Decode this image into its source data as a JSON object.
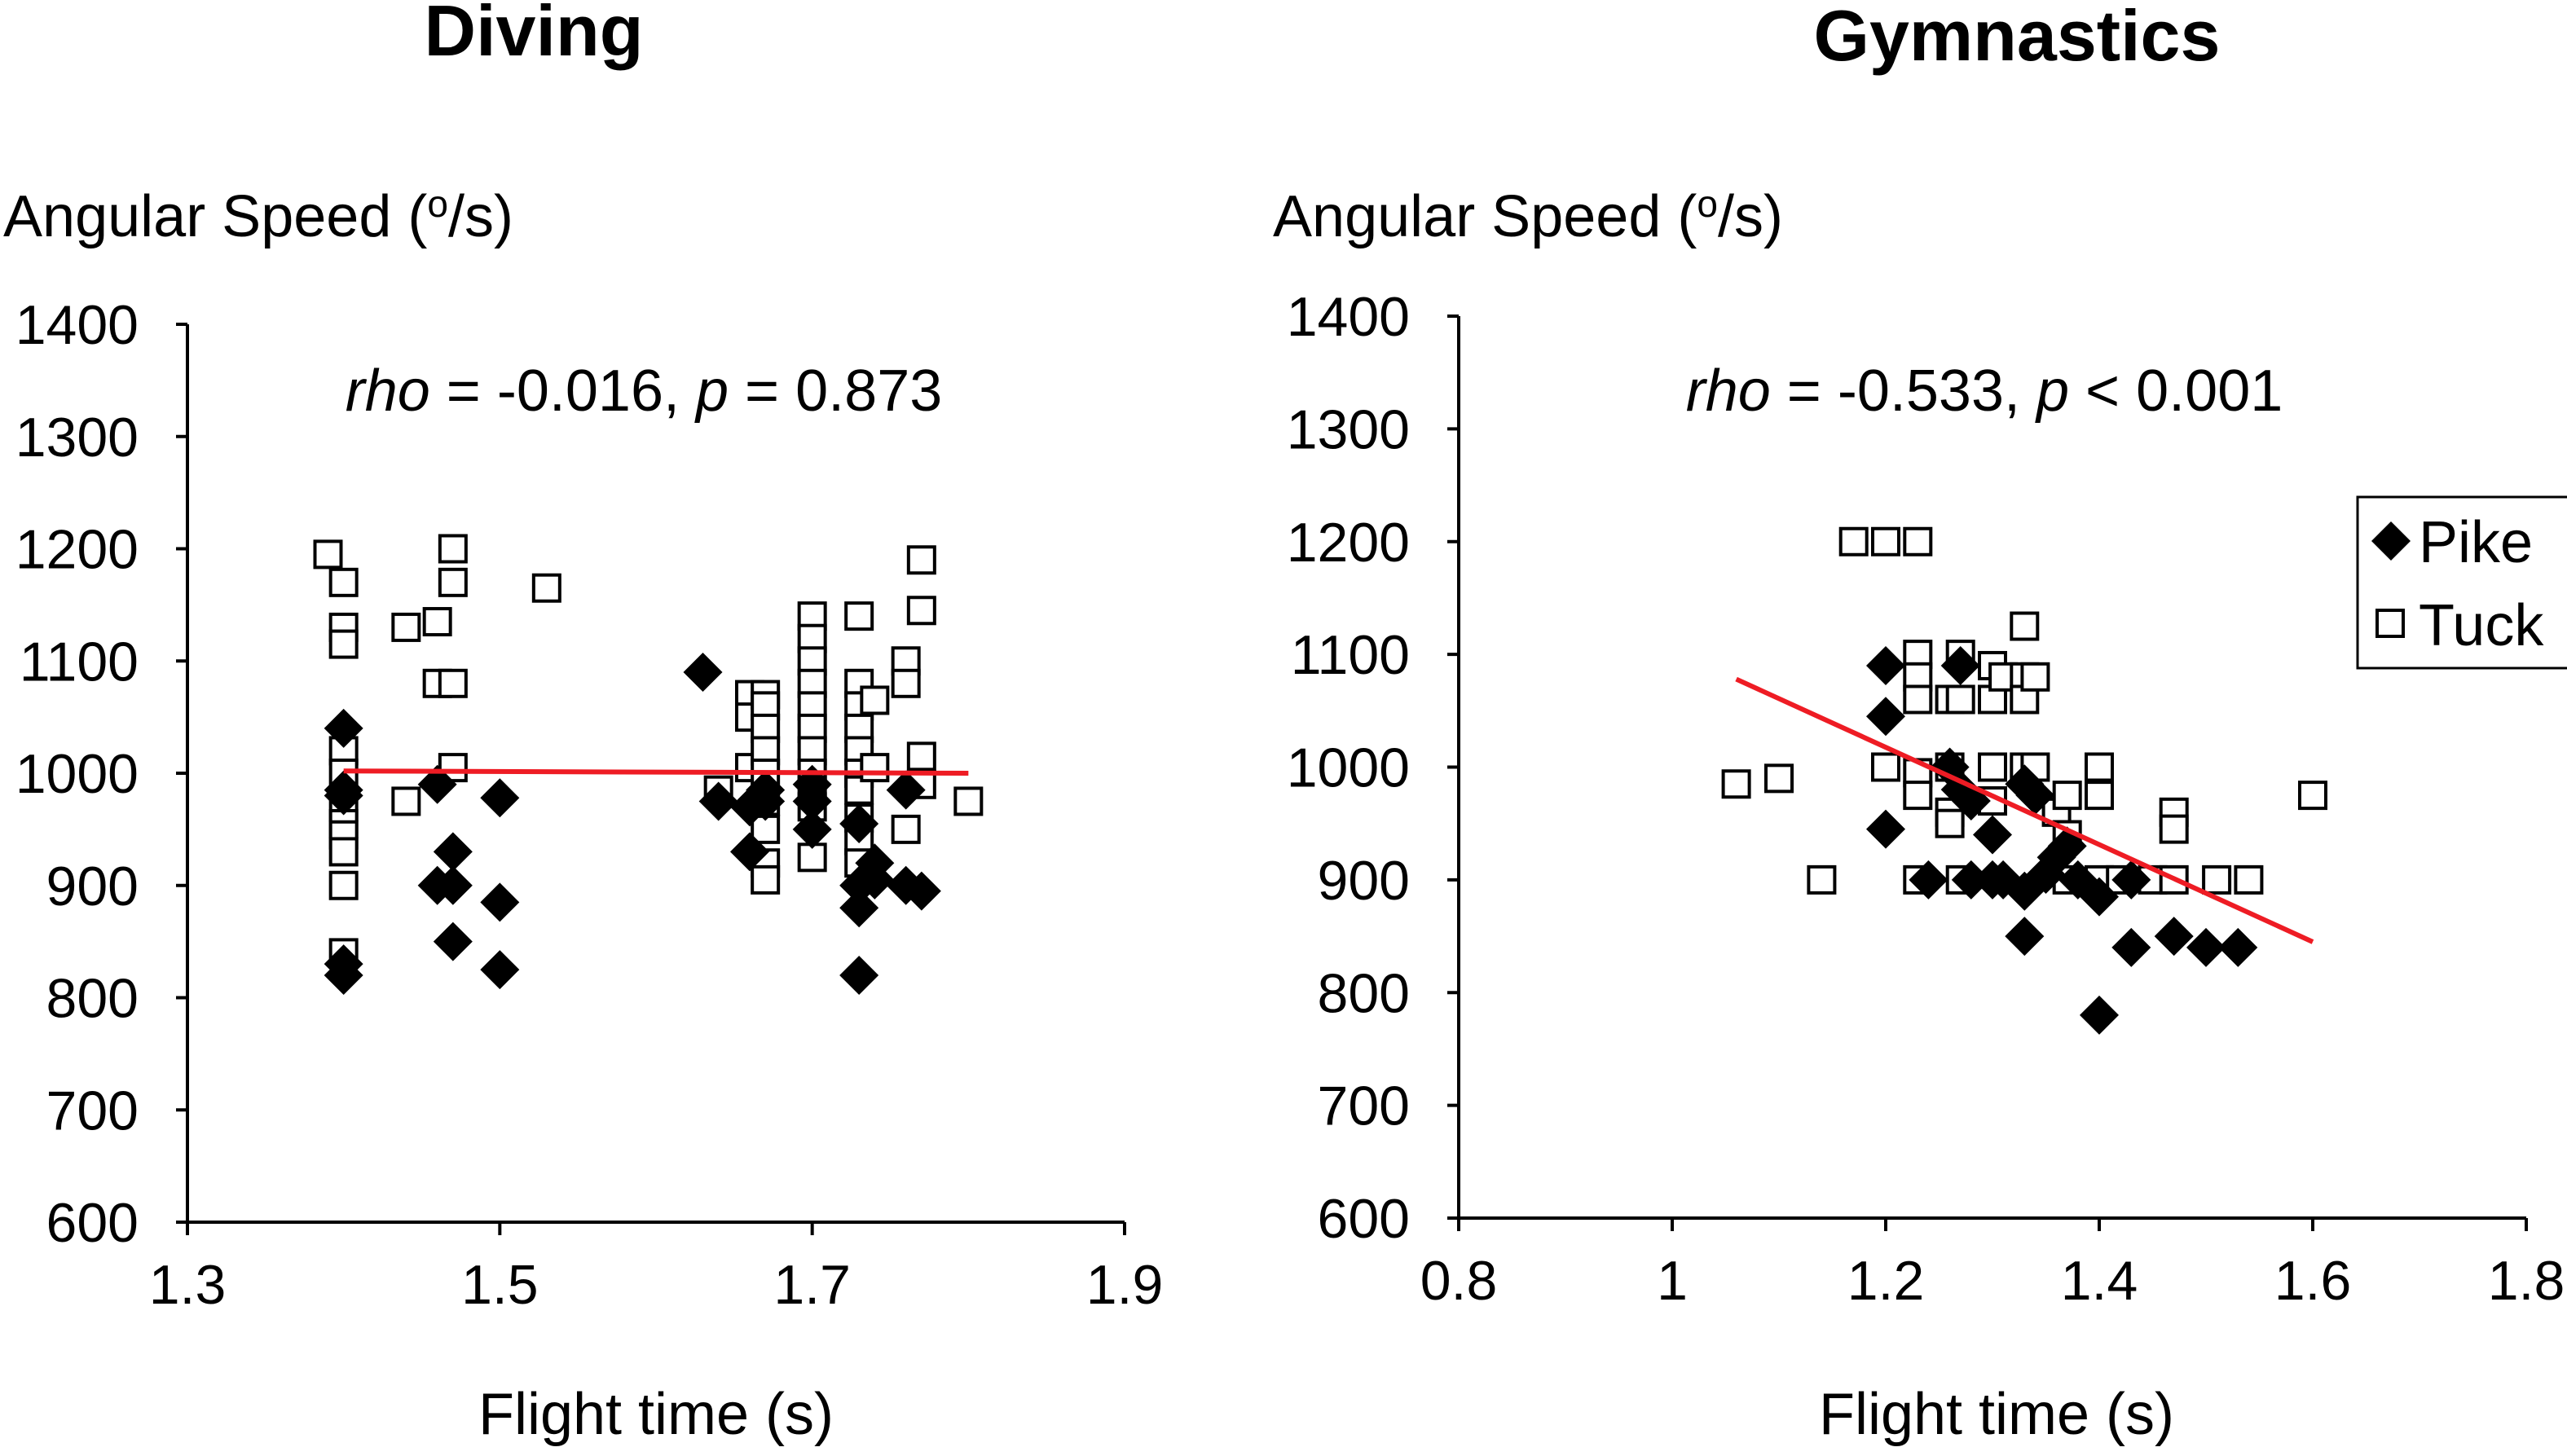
{
  "chart_data": [
    {
      "type": "scatter",
      "title": "Diving",
      "ylabel_main": "Angular Speed (",
      "ylabel_sup": "o",
      "ylabel_end": "/s)",
      "xlabel": "Flight time (s)",
      "xlim": [
        1.3,
        1.9
      ],
      "ylim": [
        600,
        1400
      ],
      "xticks": [
        1.3,
        1.5,
        1.7,
        1.9
      ],
      "xtick_labels": [
        "1.3",
        "1.5",
        "1.7",
        "1.9"
      ],
      "yticks": [
        600,
        700,
        800,
        900,
        1000,
        1100,
        1200,
        1300,
        1400
      ],
      "ytick_labels": [
        "600",
        "700",
        "800",
        "900",
        "1000",
        "1100",
        "1200",
        "1300",
        "1400"
      ],
      "stat_rho_label": "rho",
      "stat_rho_value": " = -0.016, ",
      "stat_p_label": "p",
      "stat_p_value": " = 0.873",
      "trendline": {
        "x": [
          1.4,
          1.8
        ],
        "y": [
          1002,
          1000
        ],
        "color": "#ee1c24"
      },
      "series": [
        {
          "name": "Pike",
          "marker": "diamond",
          "points": [
            [
              1.4,
              1040
            ],
            [
              1.4,
              985
            ],
            [
              1.4,
              980
            ],
            [
              1.4,
              830
            ],
            [
              1.4,
              820
            ],
            [
              1.46,
              990
            ],
            [
              1.46,
              900
            ],
            [
              1.47,
              930
            ],
            [
              1.47,
              900
            ],
            [
              1.47,
              850
            ],
            [
              1.5,
              978
            ],
            [
              1.5,
              885
            ],
            [
              1.5,
              825
            ],
            [
              1.63,
              1090
            ],
            [
              1.64,
              975
            ],
            [
              1.66,
              970
            ],
            [
              1.66,
              930
            ],
            [
              1.67,
              985
            ],
            [
              1.67,
              975
            ],
            [
              1.7,
              990
            ],
            [
              1.7,
              975
            ],
            [
              1.7,
              950
            ],
            [
              1.73,
              955
            ],
            [
              1.73,
              900
            ],
            [
              1.73,
              880
            ],
            [
              1.73,
              820
            ],
            [
              1.74,
              920
            ],
            [
              1.74,
              905
            ],
            [
              1.76,
              985
            ],
            [
              1.76,
              900
            ],
            [
              1.77,
              895
            ]
          ]
        },
        {
          "name": "Tuck",
          "marker": "square",
          "points": [
            [
              1.39,
              1195
            ],
            [
              1.4,
              1170
            ],
            [
              1.4,
              1130
            ],
            [
              1.4,
              1115
            ],
            [
              1.4,
              1020
            ],
            [
              1.4,
              1000
            ],
            [
              1.4,
              970
            ],
            [
              1.4,
              955
            ],
            [
              1.4,
              945
            ],
            [
              1.4,
              930
            ],
            [
              1.4,
              900
            ],
            [
              1.4,
              840
            ],
            [
              1.44,
              1130
            ],
            [
              1.44,
              975
            ],
            [
              1.46,
              1135
            ],
            [
              1.46,
              1080
            ],
            [
              1.47,
              1200
            ],
            [
              1.47,
              1170
            ],
            [
              1.47,
              1080
            ],
            [
              1.47,
              1005
            ],
            [
              1.53,
              1165
            ],
            [
              1.64,
              985
            ],
            [
              1.66,
              1070
            ],
            [
              1.66,
              1050
            ],
            [
              1.66,
              1005
            ],
            [
              1.67,
              1070
            ],
            [
              1.67,
              1060
            ],
            [
              1.67,
              1040
            ],
            [
              1.67,
              1020
            ],
            [
              1.67,
              1000
            ],
            [
              1.67,
              975
            ],
            [
              1.67,
              950
            ],
            [
              1.67,
              920
            ],
            [
              1.67,
              905
            ],
            [
              1.7,
              1140
            ],
            [
              1.7,
              1120
            ],
            [
              1.7,
              1100
            ],
            [
              1.7,
              1080
            ],
            [
              1.7,
              1060
            ],
            [
              1.7,
              1040
            ],
            [
              1.7,
              1020
            ],
            [
              1.7,
              1000
            ],
            [
              1.7,
              985
            ],
            [
              1.7,
              970
            ],
            [
              1.7,
              925
            ],
            [
              1.73,
              1140
            ],
            [
              1.73,
              1080
            ],
            [
              1.73,
              1060
            ],
            [
              1.73,
              1040
            ],
            [
              1.73,
              1020
            ],
            [
              1.73,
              1000
            ],
            [
              1.73,
              985
            ],
            [
              1.73,
              960
            ],
            [
              1.73,
              940
            ],
            [
              1.73,
              920
            ],
            [
              1.74,
              1065
            ],
            [
              1.74,
              1005
            ],
            [
              1.76,
              1100
            ],
            [
              1.76,
              1080
            ],
            [
              1.76,
              950
            ],
            [
              1.77,
              1190
            ],
            [
              1.77,
              1145
            ],
            [
              1.77,
              1015
            ],
            [
              1.77,
              990
            ],
            [
              1.8,
              975
            ]
          ]
        }
      ]
    },
    {
      "type": "scatter",
      "title": "Gymnastics",
      "ylabel_main": "Angular Speed (",
      "ylabel_sup": "o",
      "ylabel_end": "/s)",
      "xlabel": "Flight time (s)",
      "xlim": [
        0.8,
        1.8
      ],
      "ylim": [
        600,
        1400
      ],
      "xticks": [
        0.8,
        1.0,
        1.2,
        1.4,
        1.6,
        1.8
      ],
      "xtick_labels": [
        "0.8",
        "1",
        "1.2",
        "1.4",
        "1.6",
        "1.8"
      ],
      "yticks": [
        600,
        700,
        800,
        900,
        1000,
        1100,
        1200,
        1300,
        1400
      ],
      "ytick_labels": [
        "600",
        "700",
        "800",
        "900",
        "1000",
        "1100",
        "1200",
        "1300",
        "1400"
      ],
      "stat_rho_label": "rho",
      "stat_rho_value": " = -0.533, ",
      "stat_p_label": "p",
      "stat_p_value": " < 0.001",
      "legend": {
        "position": "right",
        "entries": [
          "Pike",
          "Tuck"
        ]
      },
      "trendline": {
        "x": [
          1.06,
          1.6
        ],
        "y": [
          1078,
          845
        ],
        "color": "#ee1c24"
      },
      "series": [
        {
          "name": "Pike",
          "marker": "diamond",
          "points": [
            [
              1.2,
              1090
            ],
            [
              1.2,
              1045
            ],
            [
              1.2,
              945
            ],
            [
              1.24,
              900
            ],
            [
              1.26,
              1000
            ],
            [
              1.27,
              1090
            ],
            [
              1.27,
              980
            ],
            [
              1.28,
              970
            ],
            [
              1.28,
              900
            ],
            [
              1.3,
              940
            ],
            [
              1.3,
              900
            ],
            [
              1.31,
              900
            ],
            [
              1.33,
              985
            ],
            [
              1.33,
              890
            ],
            [
              1.33,
              850
            ],
            [
              1.34,
              975
            ],
            [
              1.35,
              905
            ],
            [
              1.36,
              920
            ],
            [
              1.37,
              930
            ],
            [
              1.38,
              900
            ],
            [
              1.4,
              885
            ],
            [
              1.4,
              780
            ],
            [
              1.43,
              900
            ],
            [
              1.43,
              840
            ],
            [
              1.47,
              850
            ],
            [
              1.5,
              840
            ],
            [
              1.53,
              840
            ]
          ]
        },
        {
          "name": "Tuck",
          "marker": "square",
          "points": [
            [
              1.06,
              985
            ],
            [
              1.1,
              990
            ],
            [
              1.14,
              900
            ],
            [
              1.17,
              1200
            ],
            [
              1.2,
              1200
            ],
            [
              1.23,
              1200
            ],
            [
              1.2,
              1000
            ],
            [
              1.23,
              1100
            ],
            [
              1.23,
              1080
            ],
            [
              1.23,
              1060
            ],
            [
              1.23,
              995
            ],
            [
              1.23,
              975
            ],
            [
              1.23,
              900
            ],
            [
              1.26,
              1060
            ],
            [
              1.26,
              1000
            ],
            [
              1.26,
              960
            ],
            [
              1.26,
              950
            ],
            [
              1.27,
              1100
            ],
            [
              1.27,
              1060
            ],
            [
              1.27,
              900
            ],
            [
              1.3,
              1090
            ],
            [
              1.3,
              1060
            ],
            [
              1.3,
              1000
            ],
            [
              1.3,
              970
            ],
            [
              1.31,
              1080
            ],
            [
              1.33,
              1125
            ],
            [
              1.33,
              1080
            ],
            [
              1.33,
              1060
            ],
            [
              1.33,
              1000
            ],
            [
              1.34,
              1080
            ],
            [
              1.34,
              1000
            ],
            [
              1.36,
              960
            ],
            [
              1.37,
              975
            ],
            [
              1.37,
              940
            ],
            [
              1.37,
              900
            ],
            [
              1.4,
              1000
            ],
            [
              1.4,
              975
            ],
            [
              1.4,
              900
            ],
            [
              1.42,
              900
            ],
            [
              1.45,
              900
            ],
            [
              1.47,
              960
            ],
            [
              1.47,
              945
            ],
            [
              1.47,
              900
            ],
            [
              1.51,
              900
            ],
            [
              1.54,
              900
            ],
            [
              1.6,
              975
            ]
          ]
        }
      ]
    }
  ]
}
